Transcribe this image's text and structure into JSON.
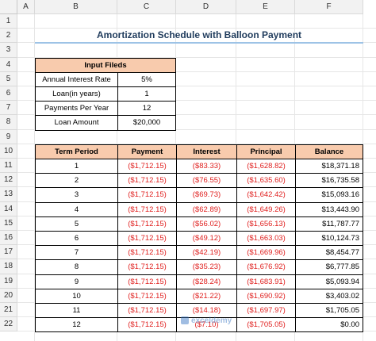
{
  "columns": [
    "A",
    "B",
    "C",
    "D",
    "E",
    "F"
  ],
  "rows": [
    "1",
    "2",
    "3",
    "4",
    "5",
    "6",
    "7",
    "8",
    "9",
    "10",
    "11",
    "12",
    "13",
    "14",
    "15",
    "16",
    "17",
    "18",
    "19",
    "20",
    "21",
    "22"
  ],
  "title": "Amortization Schedule with Balloon Payment",
  "inputs": {
    "header": "Input Fileds",
    "items": [
      {
        "label": "Annual Interest Rate",
        "value": "5%"
      },
      {
        "label": "Loan(in years)",
        "value": "1"
      },
      {
        "label": "Payments Per Year",
        "value": "12"
      },
      {
        "label": "Loan Amount",
        "value": "$20,000"
      }
    ]
  },
  "schedule": {
    "headers": [
      "Term Period",
      "Payment",
      "Interest",
      "Principal",
      "Balance"
    ],
    "rows": [
      [
        "1",
        "($1,712.15)",
        "($83.33)",
        "($1,628.82)",
        "$18,371.18"
      ],
      [
        "2",
        "($1,712.15)",
        "($76.55)",
        "($1,635.60)",
        "$16,735.58"
      ],
      [
        "3",
        "($1,712.15)",
        "($69.73)",
        "($1,642.42)",
        "$15,093.16"
      ],
      [
        "4",
        "($1,712.15)",
        "($62.89)",
        "($1,649.26)",
        "$13,443.90"
      ],
      [
        "5",
        "($1,712.15)",
        "($56.02)",
        "($1,656.13)",
        "$11,787.77"
      ],
      [
        "6",
        "($1,712.15)",
        "($49.12)",
        "($1,663.03)",
        "$10,124.73"
      ],
      [
        "7",
        "($1,712.15)",
        "($42.19)",
        "($1,669.96)",
        "$8,454.77"
      ],
      [
        "8",
        "($1,712.15)",
        "($35.23)",
        "($1,676.92)",
        "$6,777.85"
      ],
      [
        "9",
        "($1,712.15)",
        "($28.24)",
        "($1,683.91)",
        "$5,093.94"
      ],
      [
        "10",
        "($1,712.15)",
        "($21.22)",
        "($1,690.92)",
        "$3,403.02"
      ],
      [
        "11",
        "($1,712.15)",
        "($14.18)",
        "($1,697.97)",
        "$1,705.05"
      ],
      [
        "12",
        "($1,712.15)",
        "($7.10)",
        "($1,705.05)",
        "$0.00"
      ]
    ]
  },
  "watermark": {
    "text": "exceldemy"
  },
  "colors": {
    "header_fill": "#f8cbad",
    "negative": "#e0201f",
    "title_rule": "#9dc3e6"
  }
}
